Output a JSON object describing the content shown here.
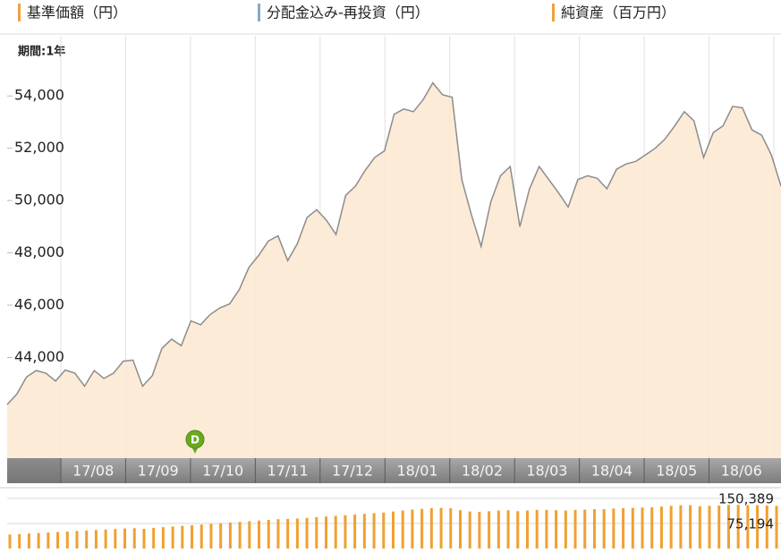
{
  "legend": [
    {
      "name": "基準価額（円）",
      "color": "#f0a040"
    },
    {
      "name": "分配金込み-再投資（円）",
      "color": "#8aa9c8"
    },
    {
      "name": "純資産（百万円）",
      "color": "#f0a040"
    }
  ],
  "chart_data": [
    {
      "type": "area",
      "period_label": "期間:1年",
      "color": "#8c8c8c",
      "fill": "#fce7d0",
      "month_labels": [
        "17/08",
        "17/09",
        "17/10",
        "17/11",
        "17/12",
        "18/01",
        "18/02",
        "18/03",
        "18/04",
        "18/05",
        "18/06"
      ],
      "values": [
        42200,
        42600,
        43250,
        43500,
        43400,
        43100,
        43520,
        43400,
        42900,
        43500,
        43200,
        43400,
        43860,
        43900,
        42900,
        43300,
        44350,
        44700,
        44450,
        45400,
        45250,
        45650,
        45900,
        46050,
        46600,
        47450,
        47900,
        48450,
        48650,
        47700,
        48350,
        49350,
        49650,
        49250,
        48700,
        50200,
        50550,
        51150,
        51650,
        51900,
        53300,
        53500,
        53400,
        53850,
        54500,
        54050,
        53950,
        50800,
        49450,
        48250,
        49950,
        50950,
        51300,
        49000,
        50450,
        51300,
        50800,
        50300,
        49750,
        50800,
        50950,
        50850,
        50450,
        51200,
        51400,
        51500,
        51750,
        52000,
        52350,
        52850,
        53400,
        53050,
        51650,
        52600,
        52850,
        53600,
        53550,
        52700,
        52500,
        51750,
        50550
      ],
      "ylim": [
        40150,
        56300
      ],
      "yticks": [
        {
          "value": 44000,
          "label": "44,000"
        },
        {
          "value": 46000,
          "label": "46,000"
        },
        {
          "value": 48000,
          "label": "48,000"
        },
        {
          "value": 50000,
          "label": "50,000"
        },
        {
          "value": 52000,
          "label": "52,000"
        },
        {
          "value": 54000,
          "label": "54,000"
        }
      ],
      "annotations": [
        {
          "text": "D",
          "color": "#6aa820"
        }
      ]
    },
    {
      "type": "bar",
      "color": "#f0a030",
      "values": [
        42000,
        43500,
        45000,
        46500,
        48000,
        49500,
        51000,
        52500,
        54000,
        55500,
        57000,
        58500,
        60000,
        61000,
        59000,
        62000,
        64000,
        66000,
        68000,
        70000,
        72000,
        74000,
        76000,
        78000,
        80000,
        82000,
        84000,
        86000,
        88000,
        89000,
        90000,
        92000,
        94000,
        96000,
        98000,
        100000,
        102000,
        104000,
        106000,
        108000,
        111000,
        114000,
        117000,
        119000,
        121000,
        122000,
        121000,
        115000,
        111000,
        110000,
        112000,
        114000,
        115000,
        112000,
        114000,
        116000,
        116000,
        115000,
        114000,
        116000,
        117000,
        118000,
        118000,
        120000,
        121000,
        122000,
        123000,
        124000,
        126000,
        128000,
        130000,
        130000,
        127000,
        128000,
        129000,
        131000,
        131000,
        130000,
        130000,
        129000,
        128000
      ],
      "ylim": [
        0,
        182600
      ],
      "yticks": [
        {
          "value": 75194,
          "label": "75,194"
        },
        {
          "value": 150389,
          "label": "150,389"
        }
      ]
    }
  ]
}
